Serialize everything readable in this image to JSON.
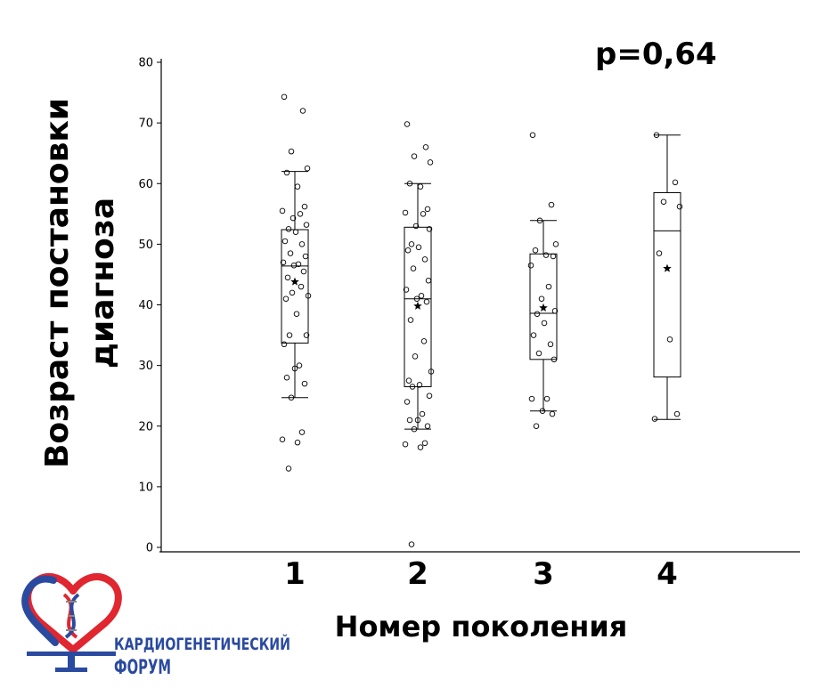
{
  "chart_data": {
    "type": "box",
    "ylabel_line1": "Возраст постановки",
    "ylabel_line2": "диагноза",
    "xlabel": "Номер поколения",
    "annotation": "p=0,64",
    "ylim": [
      0,
      80
    ],
    "yticks": [
      0,
      10,
      20,
      30,
      40,
      50,
      60,
      70,
      80
    ],
    "categories": [
      "1",
      "2",
      "3",
      "4"
    ],
    "boxes": [
      {
        "category": "1",
        "whisker_low": 24.7,
        "q1": 33.7,
        "median": 46.4,
        "q3": 52.4,
        "whisker_high": 62.0,
        "mean": 43.8,
        "points": [
          74.3,
          72.0,
          65.3,
          62.5,
          61.8,
          59.5,
          56.2,
          55.5,
          55.0,
          54.3,
          53.2,
          52.5,
          52.0,
          50.5,
          50.0,
          48.5,
          48.0,
          47.0,
          46.7,
          46.5,
          45.5,
          44.5,
          43.0,
          42.0,
          41.5,
          41.0,
          38.5,
          35.0,
          35.0,
          33.5,
          30.0,
          29.5,
          28.0,
          27.0,
          24.7,
          19.0,
          17.8,
          17.3,
          13.0
        ]
      },
      {
        "category": "2",
        "whisker_low": 19.5,
        "q1": 26.5,
        "median": 41.0,
        "q3": 52.8,
        "whisker_high": 60.0,
        "mean": 39.8,
        "points": [
          69.8,
          66.0,
          64.5,
          63.5,
          60.0,
          59.5,
          55.8,
          55.2,
          55.0,
          53.0,
          52.5,
          50.0,
          49.5,
          49.0,
          47.5,
          46.0,
          44.0,
          42.5,
          41.5,
          41.0,
          40.5,
          37.5,
          34.0,
          31.5,
          29.0,
          27.5,
          26.8,
          26.5,
          25.0,
          24.0,
          22.0,
          21.0,
          21.0,
          20.0,
          19.5,
          17.2,
          17.0,
          16.5,
          0.5
        ]
      },
      {
        "category": "3",
        "whisker_low": 22.5,
        "q1": 31.0,
        "median": 38.6,
        "q3": 48.4,
        "whisker_high": 53.9,
        "mean": 39.5,
        "points": [
          68.0,
          56.5,
          53.9,
          50.0,
          49.0,
          48.2,
          48.0,
          46.5,
          43.0,
          41.0,
          39.0,
          38.5,
          37.0,
          35.0,
          33.5,
          32.0,
          31.0,
          24.5,
          24.5,
          22.5,
          22.0,
          20.0
        ]
      },
      {
        "category": "4",
        "whisker_low": 21.1,
        "q1": 28.1,
        "median": 52.2,
        "q3": 58.5,
        "whisker_high": 68.0,
        "mean": 46.0,
        "points": [
          68.0,
          60.2,
          57.0,
          56.2,
          48.5,
          34.3,
          22.0,
          21.2
        ]
      }
    ]
  },
  "logo": {
    "line1": "КАРДИОГЕНЕТИЧЕСКИЙ",
    "line2": "ФОРУМ",
    "color_blue": "#2a4aa0",
    "color_red": "#e0262f"
  }
}
